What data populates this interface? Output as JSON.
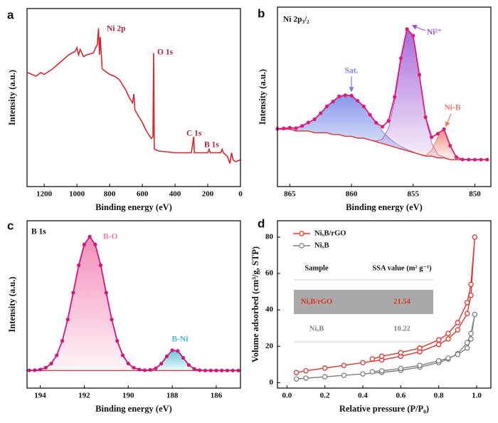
{
  "chart_data": [
    {
      "type": "line",
      "panel": "a",
      "color": "#d9232f",
      "x": [
        1300,
        1250,
        1220,
        1200,
        1150,
        1100,
        1050,
        1010,
        1000,
        990,
        980,
        960,
        940,
        900,
        875,
        868,
        862,
        857,
        852,
        845,
        800,
        770,
        740,
        720,
        700,
        680,
        660,
        652,
        645,
        620,
        600,
        580,
        560,
        545,
        535,
        531,
        527,
        500,
        400,
        300,
        286,
        282,
        200,
        192,
        185,
        120,
        112,
        105,
        80,
        65,
        55,
        45,
        30,
        0
      ],
      "values": [
        64,
        62,
        64,
        63,
        66,
        70,
        74,
        76,
        78,
        74,
        77,
        73,
        74,
        75,
        80,
        89,
        74,
        84,
        76,
        66,
        63,
        62,
        60,
        57,
        54,
        50,
        47,
        52,
        43,
        39,
        36,
        32,
        29,
        27,
        28,
        75,
        21,
        20,
        19,
        19,
        28,
        19,
        19,
        21,
        19,
        19,
        21,
        19,
        17,
        13,
        19,
        15,
        14,
        15
      ],
      "xlim": [
        1305,
        0
      ],
      "xticks": [
        1200,
        1000,
        800,
        600,
        400,
        200,
        0
      ],
      "ylim": [
        0,
        100
      ],
      "xlabel": "Binding energy (eV)",
      "ylabel": "Intensity (a.u.)",
      "annotations": [
        "Ni 2p",
        "O 1s",
        "C 1s",
        "B 1s"
      ]
    },
    {
      "type": "xps-fit",
      "panel": "b",
      "title": "Ni 2p₃/₂",
      "x": [
        866,
        865.5,
        865,
        864.5,
        864,
        863.5,
        863,
        862.5,
        862,
        861.5,
        861,
        860.5,
        860,
        859.5,
        859,
        858.5,
        858,
        857.5,
        857,
        856.5,
        856,
        855.5,
        855,
        854.5,
        854,
        853.5,
        853,
        852.5,
        852,
        851.5,
        851,
        850.5,
        850,
        849.5,
        849
      ],
      "background": {
        "color": "#e0302a",
        "values": [
          32,
          32,
          32,
          31,
          31,
          31,
          30,
          30,
          30,
          29,
          29,
          28,
          28,
          27,
          27,
          26,
          25,
          24,
          23,
          22,
          21,
          20,
          19,
          18,
          17,
          17,
          16,
          16,
          15,
          15,
          15,
          15,
          15,
          15,
          15
        ]
      },
      "envelope": {
        "color": "#e0197d",
        "values": [
          32.2,
          32.4,
          32.8,
          32.5,
          33.8,
          35.7,
          37.5,
          40.9,
          44.7,
          47.4,
          50.3,
          50.9,
          50.7,
          47.8,
          44.7,
          40,
          35.6,
          33.3,
          36.6,
          50,
          71.5,
          87.8,
          84.1,
          62.3,
          38.7,
          27.5,
          29.4,
          32,
          22.8,
          16.4,
          15.1,
          15,
          15,
          15,
          15
        ]
      },
      "series": [
        {
          "name": "Sat.",
          "color": "#6f84e6",
          "values": [
            32.2,
            32.4,
            32.8,
            32.5,
            33.8,
            35.7,
            37.5,
            40.9,
            44.7,
            47.4,
            50.3,
            50.9,
            50.7,
            47.8,
            44.7,
            40,
            35.2,
            30.9,
            27.3,
            24.5,
            22.3,
            20.7,
            19.3,
            18,
            17,
            17,
            16,
            16,
            15,
            15,
            15,
            15,
            15,
            15,
            15
          ]
        },
        {
          "name": "Ni²⁺",
          "color": "#9a52d2",
          "values": [
            32,
            32,
            32,
            31,
            31,
            31,
            30,
            30,
            30,
            29,
            29,
            28,
            28,
            27,
            27,
            26,
            25.4,
            26.4,
            32.3,
            47.5,
            70.2,
            87.1,
            83.8,
            62.3,
            38.4,
            24.3,
            17.8,
            16.3,
            15,
            15,
            15,
            15,
            15,
            15,
            15
          ]
        },
        {
          "name": "Ni-B",
          "color": "#ee7a68",
          "values": [
            32,
            32,
            32,
            31,
            31,
            31,
            30,
            30,
            30,
            29,
            29,
            28,
            28,
            27,
            27,
            26,
            25,
            24,
            23,
            22,
            21,
            20,
            19,
            18,
            17.3,
            20.2,
            27.6,
            31.7,
            22.8,
            16.4,
            15.1,
            15,
            15,
            15,
            15
          ]
        }
      ],
      "xlim": [
        866,
        848.7
      ],
      "xticks": [
        865,
        860,
        855,
        850
      ],
      "ylim": [
        0,
        100
      ],
      "xlabel": "Binding energy (eV)",
      "ylabel": "Intensity (a.u.)"
    },
    {
      "type": "xps-fit",
      "panel": "c",
      "title": "B 1s",
      "x": [
        194.5,
        194.25,
        194,
        193.75,
        193.5,
        193.25,
        193,
        192.75,
        192.5,
        192.25,
        192,
        191.75,
        191.5,
        191.25,
        191,
        190.75,
        190.5,
        190.25,
        190,
        189.75,
        189.5,
        189.25,
        189,
        188.75,
        188.5,
        188.25,
        188,
        187.75,
        187.5,
        187.25,
        187,
        186.75,
        186.5,
        186.25,
        186,
        185.75,
        185.5,
        185.25,
        185
      ],
      "baseline": 10.5,
      "baseline_color": "#e0302a",
      "envelope": {
        "color": "#d4147f",
        "values": [
          10.6,
          10.7,
          11.1,
          12.2,
          14.7,
          19.6,
          28.2,
          41,
          57,
          73.4,
          85.8,
          90.5,
          85.8,
          73.4,
          57,
          41,
          28.2,
          19.6,
          14.7,
          12.2,
          11.1,
          10.7,
          10.9,
          11.8,
          14.6,
          19,
          22.6,
          22.2,
          18.1,
          13.8,
          11.5,
          10.7,
          10.5,
          10.5,
          10.5,
          10.5,
          10.5,
          10.5,
          10.5
        ]
      },
      "series": [
        {
          "name": "B-O",
          "color": "#f27aae",
          "values": [
            10.6,
            10.7,
            11.1,
            12.2,
            14.7,
            19.6,
            28.2,
            41,
            57,
            73.4,
            85.8,
            90.5,
            85.8,
            73.4,
            57,
            41,
            28.2,
            19.6,
            14.7,
            12.2,
            11.1,
            10.7,
            10.6,
            10.5,
            10.5,
            10.5,
            10.5,
            10.5,
            10.5,
            10.5,
            10.5,
            10.5,
            10.5,
            10.5,
            10.5,
            10.5,
            10.5,
            10.5,
            10.5
          ]
        },
        {
          "name": "B-Ni",
          "color": "#45bccb",
          "values": [
            10.5,
            10.5,
            10.5,
            10.5,
            10.5,
            10.5,
            10.5,
            10.5,
            10.5,
            10.5,
            10.5,
            10.5,
            10.5,
            10.5,
            10.5,
            10.5,
            10.5,
            10.5,
            10.5,
            10.5,
            10.5,
            10.5,
            10.8,
            11.8,
            14.6,
            19,
            22.6,
            22.2,
            18.1,
            13.8,
            11.5,
            10.7,
            10.5,
            10.5,
            10.5,
            10.5,
            10.5,
            10.5,
            10.5
          ]
        }
      ],
      "xlim": [
        194.6,
        184.9
      ],
      "xticks": [
        194,
        192,
        190,
        188,
        186
      ],
      "ylim": [
        0,
        100
      ],
      "xlabel": "Binding energy (eV)",
      "ylabel": "Intensity (a.u.)"
    },
    {
      "type": "isotherm",
      "panel": "d",
      "x": [
        0.05,
        0.1,
        0.2,
        0.3,
        0.4,
        0.5,
        0.6,
        0.7,
        0.8,
        0.85,
        0.9,
        0.95,
        0.97,
        0.99,
        0.97,
        0.95,
        0.9,
        0.85,
        0.8,
        0.7,
        0.6,
        0.5,
        0.45
      ],
      "series": [
        {
          "name": "NiₓB/rGO",
          "color": "#e53228",
          "values": [
            5.5,
            6.5,
            8,
            9.5,
            11,
            12.5,
            14.5,
            17,
            21,
            24,
            29,
            38,
            48,
            80,
            54,
            44,
            33,
            27,
            23.5,
            19,
            16.5,
            14.5,
            13
          ]
        },
        {
          "name": "NiₓB",
          "color": "#7f7f7f",
          "values": [
            2,
            2.5,
            3.2,
            4,
            4.8,
            5.6,
            6.8,
            8.5,
            11,
            13,
            16,
            22,
            27,
            37.5,
            24,
            19,
            15.5,
            13.5,
            12,
            9.5,
            7.8,
            6.5,
            6
          ]
        }
      ],
      "xlim": [
        -0.05,
        1.075
      ],
      "xticks": [
        {
          "value": 0,
          "label": "0.0"
        },
        0.2,
        0.4,
        0.6,
        0.8,
        {
          "value": 1,
          "label": "1.0"
        }
      ],
      "ylim": [
        -3,
        89
      ],
      "yticks": [
        0,
        20,
        40,
        60,
        80
      ],
      "xlabel": "Relative pressure (P/P₀)",
      "ylabel": "Volume adsorbed (cm³/g, STP)",
      "table": {
        "header": [
          "Sample",
          "SSA value (m² g⁻¹)"
        ],
        "rows": [
          [
            "NiₓB/rGO",
            "21.54"
          ],
          [
            "NiₓB",
            "10.22"
          ]
        ]
      }
    }
  ]
}
